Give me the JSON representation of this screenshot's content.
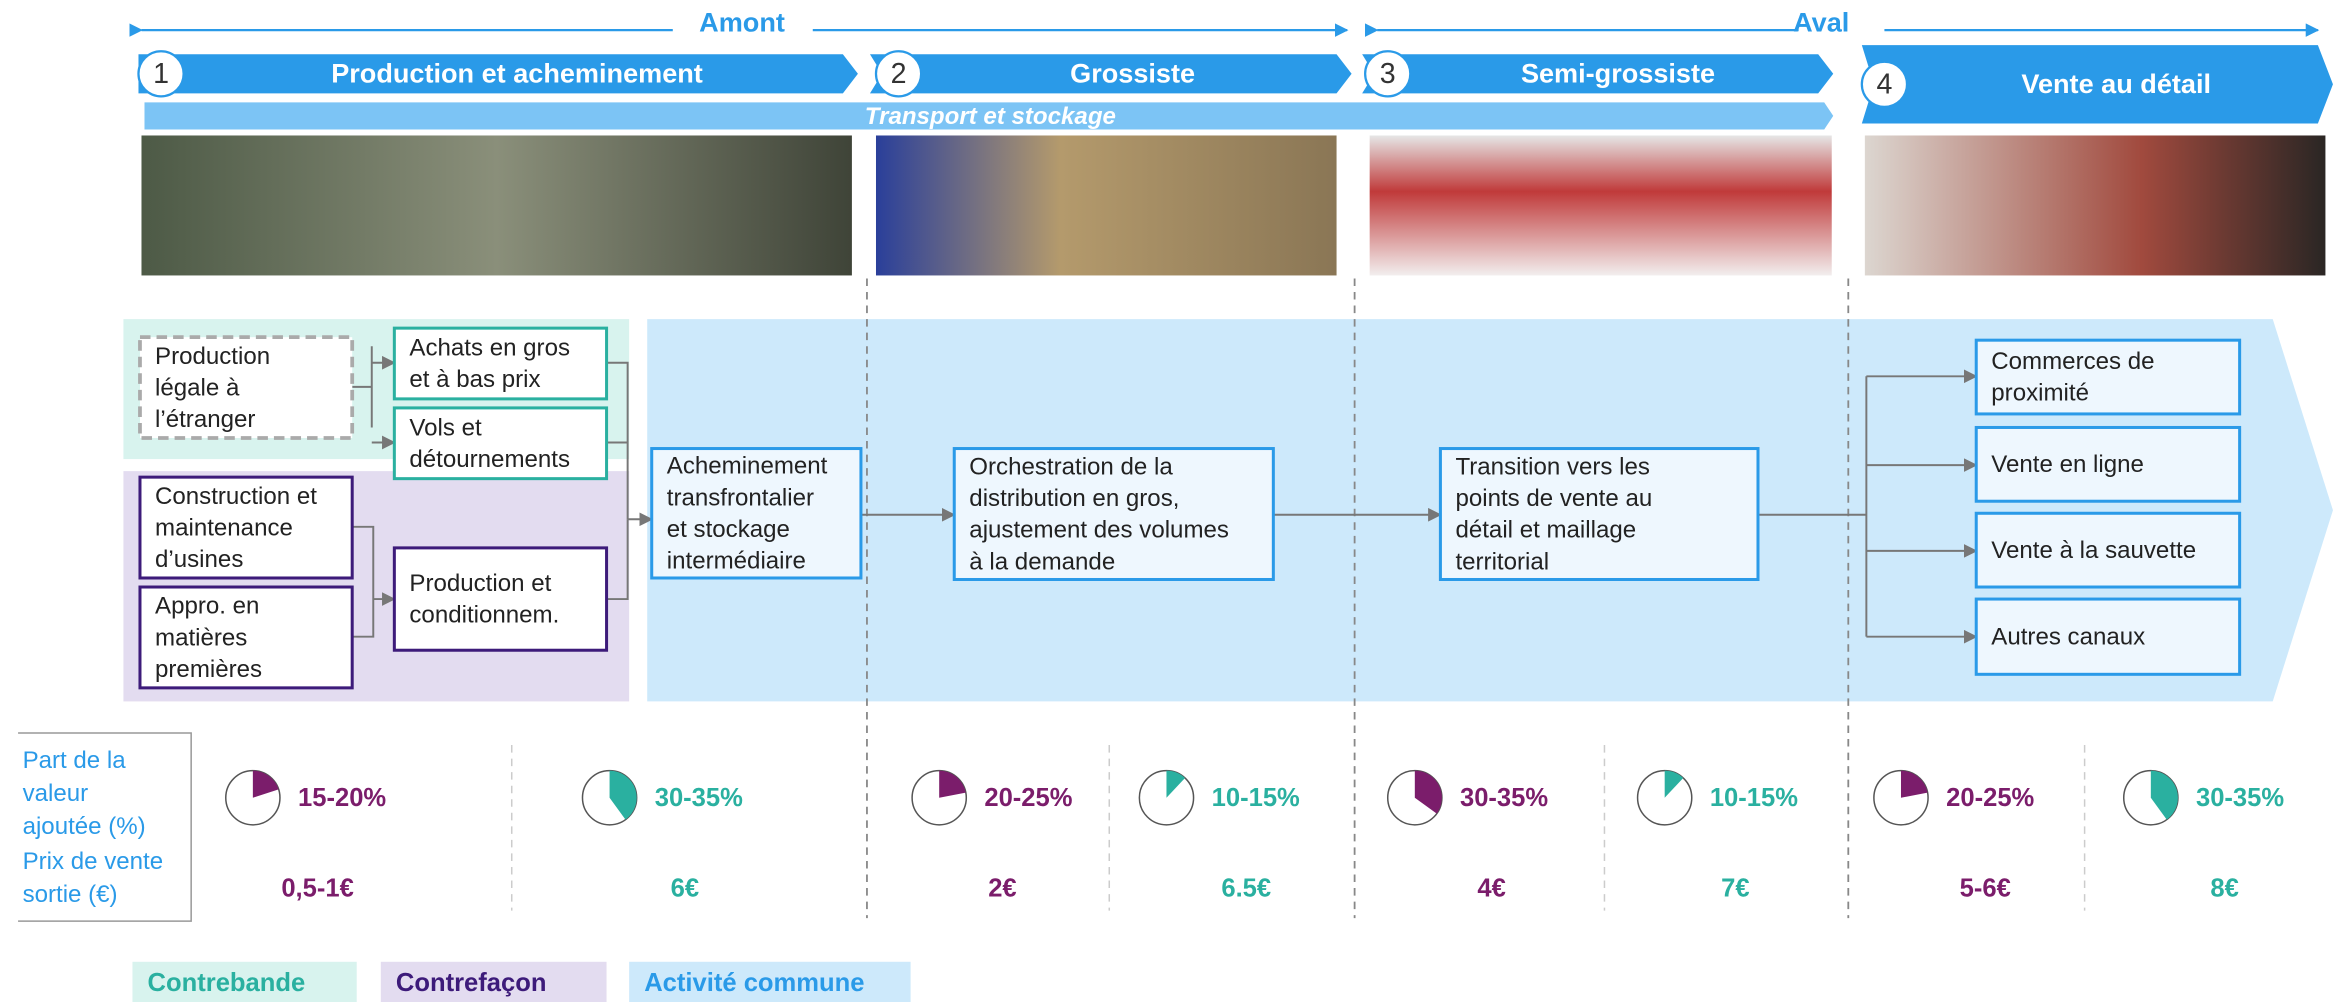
{
  "header": {
    "upstream": "Amont",
    "downstream": "Aval",
    "transport": "Transport et stockage"
  },
  "stages": [
    {
      "number": 1,
      "title": "Production et acheminement"
    },
    {
      "number": 2,
      "title": "Grossiste"
    },
    {
      "number": 3,
      "title": "Semi-grossiste"
    },
    {
      "number": 4,
      "title": "Vente au détail"
    }
  ],
  "boxes": [
    {
      "lines": [
        "Production",
        "légale à",
        "l’étranger"
      ]
    },
    {
      "lines": [
        "Achats en gros",
        "et à bas prix"
      ]
    },
    {
      "lines": [
        "Vols et",
        "détournements"
      ]
    },
    {
      "lines": [
        "Construction et",
        "maintenance",
        "d’usines"
      ]
    },
    {
      "lines": [
        "Appro. en",
        "matières",
        "premières"
      ]
    },
    {
      "lines": [
        "Production et",
        "conditionnem."
      ]
    },
    {
      "lines": [
        "Acheminement",
        "transfrontalier",
        "et stockage",
        "intermédiaire"
      ]
    },
    {
      "lines": [
        "Orchestration de la",
        "distribution en gros,",
        "ajustement des volumes",
        "à la demande"
      ]
    },
    {
      "lines": [
        "Transition vers les",
        "points de vente au",
        "détail et maillage",
        "territorial"
      ]
    },
    {
      "lines": [
        "Commerces de",
        "proximité"
      ]
    },
    {
      "lines": [
        "Vente en ligne"
      ]
    },
    {
      "lines": [
        "Vente à la sauvette"
      ]
    },
    {
      "lines": [
        "Autres canaux"
      ]
    }
  ],
  "metrics": {
    "share_label": [
      "Part de la",
      "valeur",
      "ajoutée (%)"
    ],
    "price_label": [
      "Prix de vente",
      "sortie (€)"
    ],
    "columns": [
      {
        "share": "15-20%",
        "price": "0,5-1€"
      },
      {
        "share": "30-35%",
        "price": "6€"
      },
      {
        "share": "20-25%",
        "price": "2€"
      },
      {
        "share": "10-15%",
        "price": "6.5€"
      },
      {
        "share": "30-35%",
        "price": "4€"
      },
      {
        "share": "10-15%",
        "price": "7€"
      },
      {
        "share": "20-25%",
        "price": "5-6€"
      },
      {
        "share": "30-35%",
        "price": "8€"
      }
    ]
  },
  "legend": [
    "Contrebande",
    "Contrefaçon",
    "Activité commune"
  ]
}
